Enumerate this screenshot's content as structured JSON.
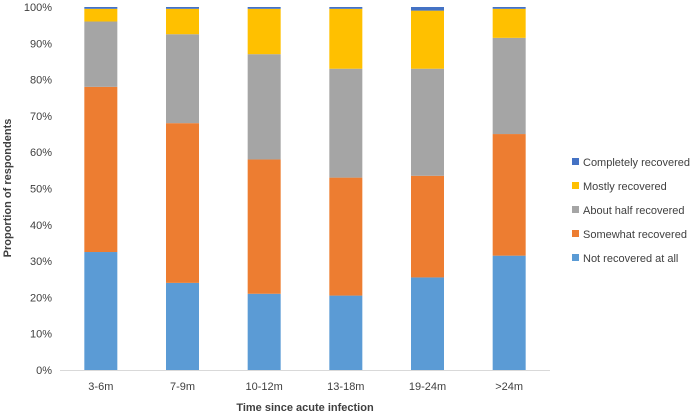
{
  "chart_data": {
    "type": "bar",
    "stacked": true,
    "percent": true,
    "title": "",
    "xlabel": "Time since acute infection",
    "ylabel": "Proportion of respondents",
    "ylim": [
      0,
      100
    ],
    "yticks": [
      "0%",
      "10%",
      "20%",
      "30%",
      "40%",
      "50%",
      "60%",
      "70%",
      "80%",
      "90%",
      "100%"
    ],
    "grid": false,
    "legend_position": "right",
    "categories": [
      "3-6m",
      "7-9m",
      "10-12m",
      "13-18m",
      "19-24m",
      ">24m"
    ],
    "series": [
      {
        "name": "Not recovered at all",
        "color": "#5B9BD5",
        "values": [
          32.5,
          24,
          21,
          20.5,
          25.5,
          31.5
        ]
      },
      {
        "name": "Somewhat recovered",
        "color": "#ED7D31",
        "values": [
          45.5,
          44,
          37,
          32.5,
          28,
          33.5
        ]
      },
      {
        "name": "About half recovered",
        "color": "#A5A5A5",
        "values": [
          18,
          24.5,
          29,
          30,
          29.5,
          26.5
        ]
      },
      {
        "name": "Mostly recovered",
        "color": "#FFC000",
        "values": [
          3.5,
          7,
          12.5,
          16.5,
          16,
          8
        ]
      },
      {
        "name": "Completely recovered",
        "color": "#4472C4",
        "values": [
          0.5,
          0.5,
          0.5,
          0.5,
          1,
          0.5
        ]
      }
    ],
    "legend_order": [
      "Completely recovered",
      "Mostly recovered",
      "About half recovered",
      "Somewhat recovered",
      "Not recovered at all"
    ]
  }
}
